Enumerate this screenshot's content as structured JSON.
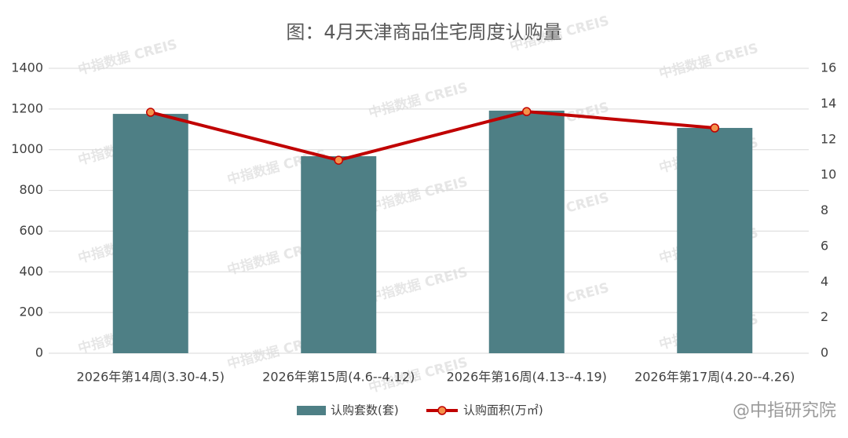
{
  "chart_data": {
    "type": "bar_line",
    "title": "图：4月天津商品住宅周度认购量",
    "categories": [
      "2026年第14周(3.30-4.5)",
      "2026年第15周(4.6--4.12)",
      "2026年第16周(4.13--4.19)",
      "2026年第17周(4.20--4.26)"
    ],
    "series": [
      {
        "name": "认购套数(套)",
        "type": "bar",
        "color": "#4e7f85",
        "values": [
          1176,
          968,
          1192,
          1107
        ]
      },
      {
        "name": "认购面积(万㎡)",
        "type": "line",
        "axis": "y2",
        "color": "#c00000",
        "marker_color": "#f4914a",
        "values": [
          13.53,
          10.84,
          13.57,
          12.65
        ]
      }
    ],
    "ylim": [
      0,
      1400
    ],
    "yticks": [
      0,
      200,
      400,
      600,
      800,
      1000,
      1200,
      1400
    ],
    "y2lim": [
      0,
      16
    ],
    "y2ticks": [
      0,
      2,
      4,
      6,
      8,
      10,
      12,
      14,
      16
    ],
    "grid": true,
    "legend": "bottom"
  },
  "watermark": "中指数据 CREIS",
  "credit": "@中指研究院"
}
